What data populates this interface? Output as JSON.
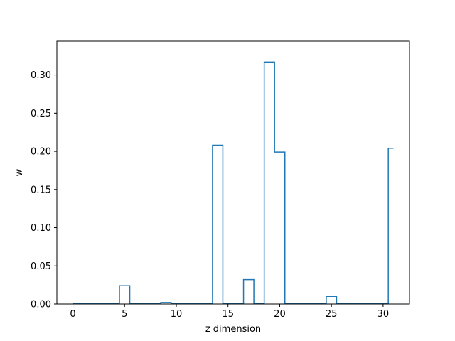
{
  "chart_data": {
    "type": "line",
    "style": "step",
    "title": "",
    "xlabel": "z dimension",
    "ylabel": "w",
    "xlim": [
      -1.55,
      32.55
    ],
    "ylim": [
      0,
      0.3443
    ],
    "xticks": [
      0,
      5,
      10,
      15,
      20,
      25,
      30
    ],
    "yticks": [
      0.0,
      0.05,
      0.1,
      0.15,
      0.2,
      0.25,
      0.3
    ],
    "xtick_labels": [
      "0",
      "5",
      "10",
      "15",
      "20",
      "25",
      "30"
    ],
    "ytick_labels": [
      "0.00",
      "0.05",
      "0.10",
      "0.15",
      "0.20",
      "0.25",
      "0.30"
    ],
    "grid": false,
    "line_color": "#1f77b4",
    "x": [
      0,
      1,
      2,
      3,
      4,
      5,
      6,
      7,
      8,
      9,
      10,
      11,
      12,
      13,
      14,
      15,
      16,
      17,
      18,
      19,
      20,
      21,
      22,
      23,
      24,
      25,
      26,
      27,
      28,
      29,
      30,
      31
    ],
    "values": [
      0.0005,
      0.0005,
      0.0005,
      0.001,
      0.0005,
      0.024,
      0.001,
      0.0005,
      0.0005,
      0.002,
      0.0005,
      0.0005,
      0.0005,
      0.001,
      0.208,
      0.001,
      0.0005,
      0.032,
      0.0005,
      0.317,
      0.199,
      0.0005,
      0.0005,
      0.0005,
      0.0005,
      0.01,
      0.0005,
      0.0005,
      0.0005,
      0.0005,
      0.0005,
      0.204
    ]
  }
}
